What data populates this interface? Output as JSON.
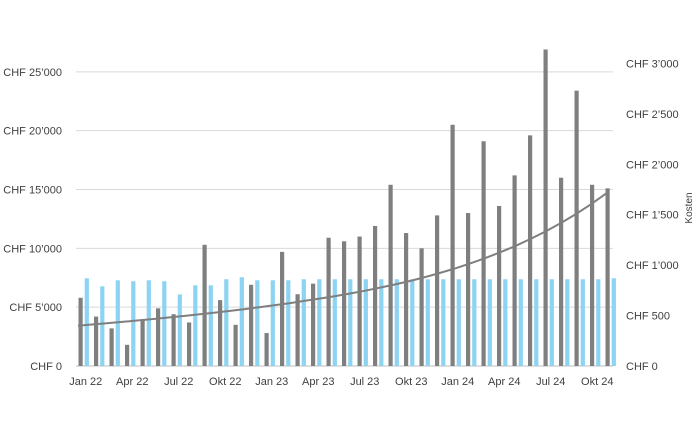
{
  "chart_data": {
    "type": "bar",
    "grid": true,
    "x_tick_labels": [
      "Jan 22",
      "Apr 22",
      "Jul 22",
      "Okt 22",
      "Jan 23",
      "Apr 23",
      "Jul 23",
      "Okt 23",
      "Jan 24",
      "Apr 24",
      "Jul 24",
      "Okt 24"
    ],
    "left_axis": {
      "ylim": [
        0,
        30000
      ],
      "ticks": [
        0,
        5000,
        10000,
        15000,
        20000,
        25000
      ],
      "tick_labels": [
        "CHF 0",
        "CHF 5’000",
        "CHF 10’000",
        "CHF 15’000",
        "CHF 20’000",
        "CHF 25’000"
      ]
    },
    "right_axis": {
      "label": "Kosten",
      "ylim": [
        0,
        3500
      ],
      "ticks": [
        0,
        500,
        1000,
        1500,
        2000,
        2500,
        3000
      ],
      "tick_labels": [
        "CHF 0",
        "CHF 500",
        "CHF 1’000",
        "CHF 1’500",
        "CHF 2’000",
        "CHF 2’500",
        "CHF 3’000"
      ]
    },
    "series": [
      {
        "axis": "left",
        "color": "#7f7f7f",
        "values": [
          5800,
          4200,
          3200,
          1800,
          3900,
          4900,
          4400,
          3700,
          10300,
          5600,
          3500,
          6900,
          2800,
          9700,
          6100,
          7000,
          10900,
          10600,
          11000,
          11900,
          15400,
          11300,
          10000,
          12800,
          20500,
          13000,
          19100,
          13600,
          16200,
          19600,
          26900,
          16000,
          23400,
          15400,
          15100
        ]
      },
      {
        "axis": "right",
        "color": "#8dd3f2",
        "values": [
          870,
          790,
          850,
          840,
          850,
          840,
          710,
          800,
          800,
          860,
          880,
          850,
          850,
          850,
          860,
          860,
          860,
          860,
          860,
          860,
          860,
          860,
          860,
          860,
          860,
          860,
          860,
          860,
          860,
          860,
          860,
          860,
          860,
          860,
          870
        ]
      },
      {
        "type": "line",
        "trend": "exponential",
        "axis": "right",
        "color": "#7f7f7f",
        "values": [
          400,
          412,
          425,
          438,
          452,
          466,
          481,
          496,
          512,
          528,
          545,
          563,
          582,
          602,
          623,
          645,
          668,
          692,
          718,
          746,
          776,
          808,
          843,
          881,
          923,
          968,
          1017,
          1070,
          1128,
          1191,
          1260,
          1335,
          1417,
          1506,
          1603,
          1709
        ]
      }
    ]
  }
}
